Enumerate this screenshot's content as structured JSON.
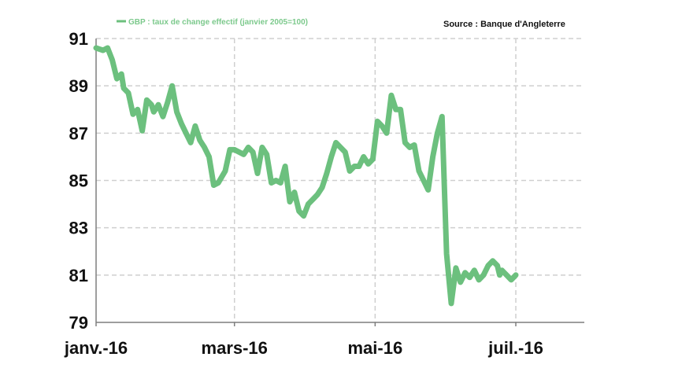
{
  "legend_label": "GBP : taux de change effectif (janvier 2005=100)",
  "source": "Source : Banque d'Angleterre",
  "chart_data": {
    "type": "line",
    "title": "",
    "xlabel": "",
    "ylabel": "",
    "ylim": [
      79,
      91
    ],
    "yticks": [
      79,
      81,
      83,
      85,
      87,
      89,
      91
    ],
    "x_tick_labels": [
      {
        "label": "janv.-16",
        "date": "2016-01-01"
      },
      {
        "label": "mars-16",
        "date": "2016-03-01"
      },
      {
        "label": "mai-16",
        "date": "2016-05-01"
      },
      {
        "label": "juil.-16",
        "date": "2016-07-01"
      }
    ],
    "x_range": {
      "start": "2016-01-01",
      "end": "2016-07-31"
    },
    "grid": true,
    "legend": "top-left",
    "colors": {
      "series": "#6cc07e",
      "grid": "#cfcfcf",
      "axis": "#7f7f7f"
    },
    "series": [
      {
        "name": "GBP : taux de change effectif (janvier 2005=100)",
        "x": [
          "2016-01-01",
          "2016-01-04",
          "2016-01-06",
          "2016-01-08",
          "2016-01-10",
          "2016-01-12",
          "2016-01-13",
          "2016-01-15",
          "2016-01-17",
          "2016-01-19",
          "2016-01-21",
          "2016-01-23",
          "2016-01-25",
          "2016-01-26",
          "2016-01-28",
          "2016-01-30",
          "2016-02-01",
          "2016-02-03",
          "2016-02-05",
          "2016-02-07",
          "2016-02-09",
          "2016-02-11",
          "2016-02-13",
          "2016-02-15",
          "2016-02-17",
          "2016-02-19",
          "2016-02-21",
          "2016-02-23",
          "2016-02-26",
          "2016-02-28",
          "2016-03-01",
          "2016-03-03",
          "2016-03-05",
          "2016-03-07",
          "2016-03-09",
          "2016-03-11",
          "2016-03-13",
          "2016-03-15",
          "2016-03-17",
          "2016-03-19",
          "2016-03-21",
          "2016-03-23",
          "2016-03-25",
          "2016-03-27",
          "2016-03-29",
          "2016-03-31",
          "2016-04-02",
          "2016-04-04",
          "2016-04-06",
          "2016-04-08",
          "2016-04-10",
          "2016-04-12",
          "2016-04-14",
          "2016-04-16",
          "2016-04-18",
          "2016-04-20",
          "2016-04-22",
          "2016-04-24",
          "2016-04-26",
          "2016-04-28",
          "2016-04-30",
          "2016-05-02",
          "2016-05-04",
          "2016-05-06",
          "2016-05-08",
          "2016-05-10",
          "2016-05-12",
          "2016-05-14",
          "2016-05-16",
          "2016-05-18",
          "2016-05-20",
          "2016-05-22",
          "2016-05-24",
          "2016-05-26",
          "2016-05-28",
          "2016-05-30",
          "2016-06-01",
          "2016-06-03",
          "2016-06-05",
          "2016-06-07",
          "2016-06-09",
          "2016-06-11",
          "2016-06-13",
          "2016-06-15",
          "2016-06-17",
          "2016-06-19",
          "2016-06-21",
          "2016-06-23",
          "2016-06-24",
          "2016-06-25",
          "2016-06-27",
          "2016-06-29",
          "2016-07-01"
        ],
        "values": [
          90.6,
          90.5,
          90.6,
          90.1,
          89.3,
          89.5,
          88.9,
          88.7,
          87.8,
          88.0,
          87.1,
          88.4,
          88.2,
          87.9,
          88.2,
          87.7,
          88.3,
          89.0,
          87.9,
          87.4,
          87.0,
          86.6,
          87.3,
          86.7,
          86.4,
          86.0,
          84.8,
          84.9,
          85.4,
          86.3,
          86.3,
          86.2,
          86.1,
          86.4,
          86.2,
          85.3,
          86.4,
          86.1,
          84.9,
          85.0,
          84.9,
          85.6,
          84.1,
          84.5,
          83.7,
          83.5,
          84.0,
          84.2,
          84.4,
          84.7,
          85.3,
          86.0,
          86.6,
          86.4,
          86.2,
          85.4,
          85.6,
          85.6,
          86.0,
          85.7,
          85.9,
          87.5,
          87.3,
          87.0,
          88.6,
          88.0,
          88.0,
          86.6,
          86.4,
          86.5,
          85.4,
          85.0,
          84.6,
          86.0,
          87.0,
          87.7,
          81.9,
          79.8,
          81.3,
          80.7,
          81.1,
          80.9,
          81.2,
          80.8,
          81.0,
          81.4,
          81.6,
          81.4,
          81.0,
          81.2,
          81.0,
          80.8,
          81.0
        ]
      }
    ]
  }
}
